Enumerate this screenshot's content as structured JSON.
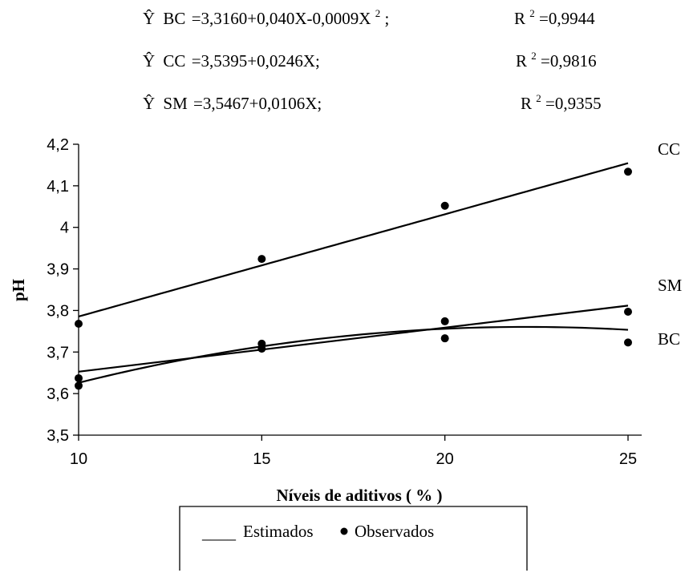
{
  "equations": [
    {
      "prefix": "Ŷ",
      "label": "BC",
      "formula": "=3,3160+0,040X-0,0009X",
      "formula_sup": "2",
      "formula_end": ";",
      "r2_prefix": "R",
      "r2_sup": "2",
      "r2_value": "=0,9944"
    },
    {
      "prefix": "Ŷ",
      "label": "CC",
      "formula": "=3,5395+0,0246X;",
      "formula_sup": "",
      "formula_end": "",
      "r2_prefix": "R",
      "r2_sup": "2",
      "r2_value": "=0,9816"
    },
    {
      "prefix": "Ŷ",
      "label": "SM",
      "formula": "=3,5467+0,0106X;",
      "formula_sup": "",
      "formula_end": "",
      "r2_prefix": "R",
      "r2_sup": "2",
      "r2_value": "=0,9355"
    }
  ],
  "legend": {
    "line_label": "Estimados",
    "marker_label": "Observados",
    "line_prefix": "____"
  },
  "chart_data": {
    "type": "line",
    "title": "",
    "xlabel": "Níveis de aditivos ( % )",
    "ylabel": "pH",
    "xlim": [
      10,
      25
    ],
    "ylim": [
      3.5,
      4.2
    ],
    "x_ticks": [
      10,
      15,
      20,
      25
    ],
    "x_tick_labels": [
      "10",
      "15",
      "20",
      "25"
    ],
    "y_ticks": [
      3.5,
      3.6,
      3.7,
      3.8,
      3.9,
      4.0,
      4.1,
      4.2
    ],
    "y_tick_labels": [
      "3,5",
      "3,6",
      "3,7",
      "3,8",
      "3,9",
      "4",
      "4,1",
      "4,2"
    ],
    "grid": false,
    "legend_position": "bottom",
    "series": [
      {
        "name": "CC",
        "fit": {
          "intercept": 3.5395,
          "linear": 0.0246,
          "quadratic": 0
        },
        "observed_x": [
          10,
          15,
          20,
          25
        ],
        "observed_y": [
          3.768,
          3.924,
          4.052,
          4.134
        ]
      },
      {
        "name": "SM",
        "fit": {
          "intercept": 3.5467,
          "linear": 0.0106,
          "quadratic": 0
        },
        "observed_x": [
          10,
          15,
          20,
          25
        ],
        "observed_y": [
          3.637,
          3.72,
          3.774,
          3.797
        ]
      },
      {
        "name": "BC",
        "fit": {
          "intercept": 3.316,
          "linear": 0.04,
          "quadratic": -0.0009
        },
        "observed_x": [
          10,
          15,
          20,
          25
        ],
        "observed_y": [
          3.619,
          3.708,
          3.733,
          3.723
        ]
      }
    ]
  }
}
